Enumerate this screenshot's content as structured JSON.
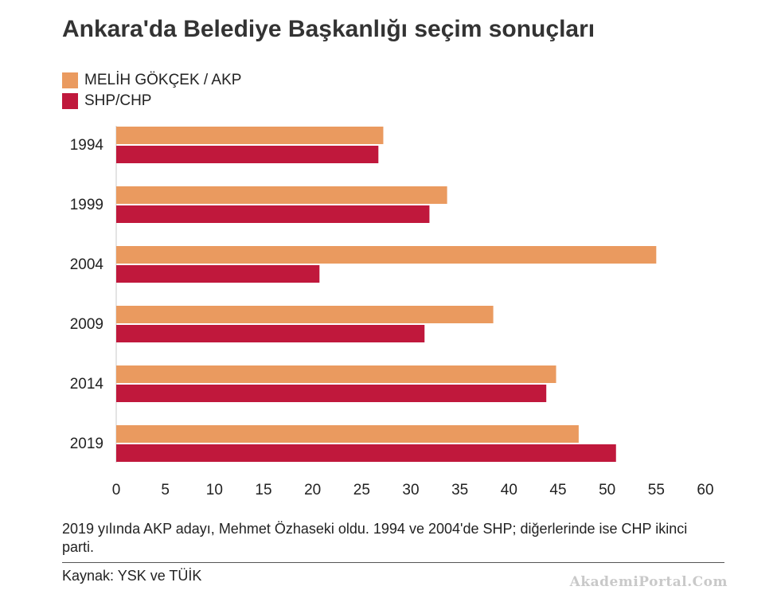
{
  "chart_data": {
    "type": "bar",
    "orientation": "horizontal",
    "title": "Ankara'da Belediye Başkanlığı seçim sonuçları",
    "categories": [
      "1994",
      "1999",
      "2004",
      "2009",
      "2014",
      "2019"
    ],
    "series": [
      {
        "name": "MELİH GÖKÇEK / AKP",
        "color": "#ea9a5f",
        "values": [
          27.2,
          33.7,
          55.0,
          38.4,
          44.8,
          47.1
        ]
      },
      {
        "name": "SHP/CHP",
        "color": "#c0183c",
        "values": [
          26.7,
          31.9,
          20.7,
          31.4,
          43.8,
          50.9
        ]
      }
    ],
    "xticks": [
      "0",
      "5",
      "10",
      "15",
      "20",
      "25",
      "30",
      "35",
      "40",
      "45",
      "50",
      "55",
      "60"
    ],
    "xlim": [
      0,
      60
    ],
    "grid": false,
    "legend_position": "top-left"
  },
  "note": "2019 yılında AKP adayı, Mehmet Özhaseki oldu. 1994 ve 2004'de SHP; diğerlerinde ise CHP ikinci parti.",
  "source": "Kaynak: YSK ve TÜİK",
  "watermark": "AkademiPortal.Com"
}
